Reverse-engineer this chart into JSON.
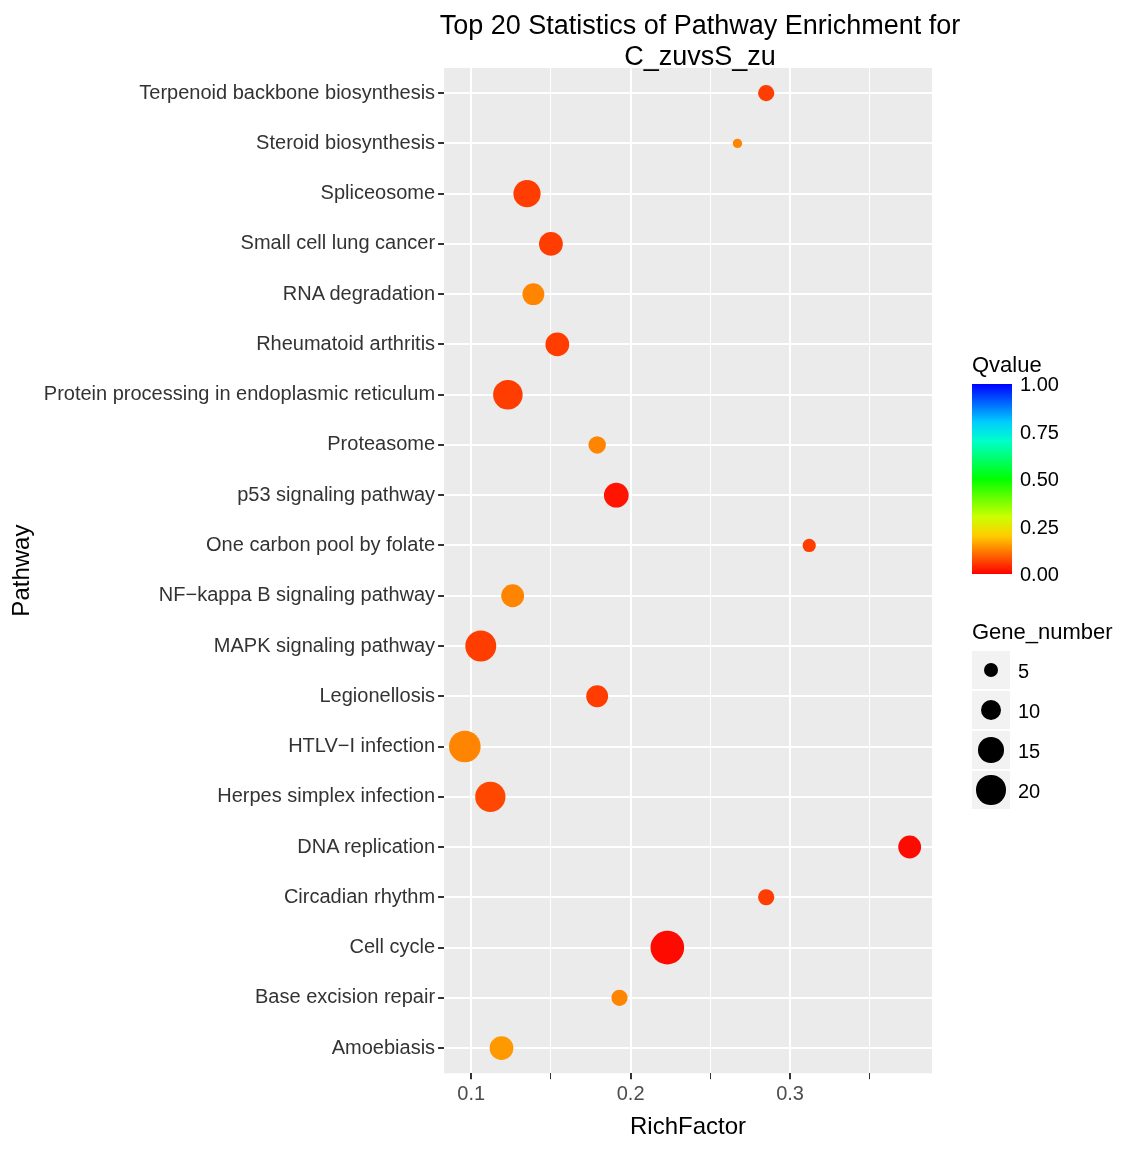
{
  "chart_data": {
    "type": "bubble",
    "title": "Top 20 Statistics of Pathway Enrichment for C_zuvsS_zu",
    "xlabel": "RichFactor",
    "ylabel": "Pathway",
    "legend_title": "Gene_number",
    "clabel": "Qvalue",
    "categories": [
      "Terpenoid backbone biosynthesis",
      "Steroid biosynthesis",
      "Spliceosome",
      "Small cell lung cancer",
      "RNA degradation",
      "Rheumatoid arthritis",
      "Protein processing in endoplasmic reticulum",
      "Proteasome",
      "p53 signaling pathway",
      "One carbon pool by folate",
      "NF−kappa B signaling pathway",
      "MAPK signaling pathway",
      "Legionellosis",
      "HTLV−I infection",
      "Herpes simplex infection",
      "DNA replication",
      "Circadian rhythm",
      "Cell cycle",
      "Base excision repair",
      "Amoebiasis"
    ],
    "orientation": "horizontal",
    "values": [
      0.285,
      0.267,
      0.135,
      0.15,
      0.139,
      0.154,
      0.123,
      0.179,
      0.191,
      0.312,
      0.126,
      0.106,
      0.179,
      0.096,
      0.112,
      0.375,
      0.285,
      0.223,
      0.193,
      0.119
    ],
    "sizes": [
      6,
      2,
      17,
      13,
      11,
      13,
      20,
      7,
      14,
      4,
      12,
      22,
      11,
      23,
      21,
      12,
      6,
      26,
      6,
      13
    ],
    "cvalues": [
      0.06,
      0.13,
      0.06,
      0.06,
      0.13,
      0.06,
      0.06,
      0.13,
      0.02,
      0.06,
      0.13,
      0.06,
      0.06,
      0.13,
      0.07,
      0.01,
      0.06,
      0.01,
      0.13,
      0.15
    ],
    "size_legend": [
      5,
      10,
      15,
      20
    ],
    "clim": [
      0,
      1
    ],
    "cticks": [
      {
        "value": 0,
        "label": "0.00"
      },
      {
        "value": 0.25,
        "label": "0.25"
      },
      {
        "value": 0.5,
        "label": "0.50"
      },
      {
        "value": 0.75,
        "label": "0.75"
      },
      {
        "value": 1,
        "label": "1.00"
      }
    ],
    "xlim": [
      0.083,
      0.389
    ],
    "xticks": [
      0.1,
      {
        "value": 0.15,
        "label": null
      },
      0.2,
      {
        "value": 0.25,
        "label": null
      },
      0.3,
      {
        "value": 0.35,
        "label": null
      }
    ],
    "grid": true
  }
}
